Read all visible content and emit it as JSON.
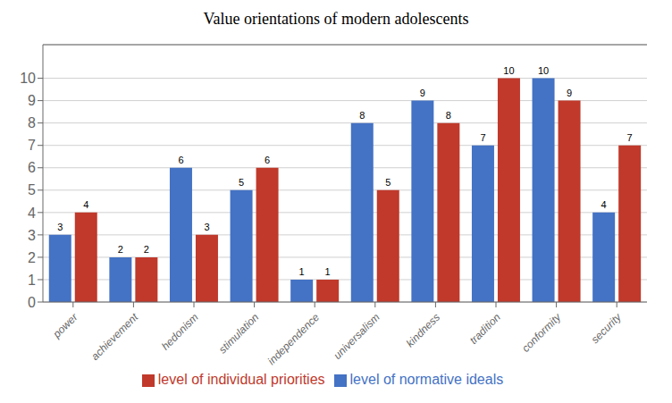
{
  "chart_data": {
    "type": "bar",
    "title": "Value orientations of modern adolescents",
    "categories": [
      "power",
      "achievement",
      "hedonism",
      "stimulation",
      "independence",
      "universalism",
      "kindness",
      "tradition",
      "conformity",
      "security"
    ],
    "series": [
      {
        "name": "level of normative ideals",
        "color": "#4472c4",
        "values": [
          3,
          2,
          6,
          5,
          1,
          8,
          9,
          7,
          10,
          4
        ]
      },
      {
        "name": "level of individual priorities",
        "color": "#c0392b",
        "values": [
          4,
          2,
          3,
          6,
          1,
          5,
          8,
          10,
          9,
          7
        ]
      }
    ],
    "ylim": [
      0,
      11.5
    ],
    "yticks": [
      0,
      1,
      2,
      3,
      4,
      5,
      6,
      7,
      8,
      9,
      10
    ],
    "grid": true,
    "legend": "bottom",
    "data_labels": true
  }
}
